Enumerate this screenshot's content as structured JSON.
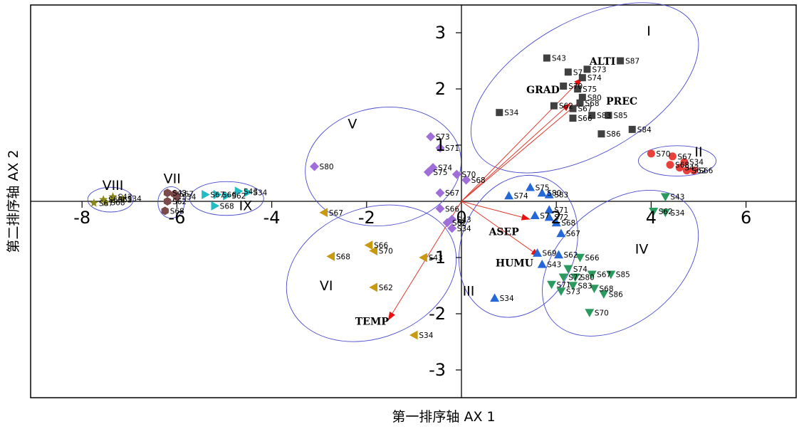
{
  "chart_data": {
    "type": "scatter",
    "xlabel": "第一排序轴  AX 1",
    "ylabel": "第二排序轴  AX 2",
    "xlim": [
      -8.0,
      7.0
    ],
    "ylim": [
      -3.5,
      3.5
    ],
    "x_ticks": [
      -8,
      -6,
      -4,
      -2,
      0,
      2,
      4,
      6
    ],
    "y_ticks": [
      -3,
      -2,
      -1,
      1,
      2,
      3
    ],
    "x_tick_labels": [
      "-8",
      "-6",
      "-4",
      "-2",
      "0",
      "2",
      "4",
      "6"
    ],
    "y_tick_labels": [
      "-3",
      "-2",
      "-1",
      "1",
      "2",
      "3"
    ],
    "grid": false,
    "legend": "none",
    "series": [
      {
        "group": "I",
        "marker": "square",
        "color": "#404040",
        "points": [
          {
            "label": "S43",
            "x": 1.8,
            "y": 2.55
          },
          {
            "label": "S87",
            "x": 3.35,
            "y": 2.5
          },
          {
            "label": "S73",
            "x": 2.65,
            "y": 2.35
          },
          {
            "label": "S7",
            "x": 2.25,
            "y": 2.3
          },
          {
            "label": "S74",
            "x": 2.55,
            "y": 2.2
          },
          {
            "label": "S70",
            "x": 2.15,
            "y": 2.05
          },
          {
            "label": "S75",
            "x": 2.45,
            "y": 2.0
          },
          {
            "label": "S80",
            "x": 2.55,
            "y": 1.85
          },
          {
            "label": "S68",
            "x": 2.5,
            "y": 1.75
          },
          {
            "label": "S62",
            "x": 1.95,
            "y": 1.7
          },
          {
            "label": "S67",
            "x": 2.35,
            "y": 1.65
          },
          {
            "label": "S34",
            "x": 0.8,
            "y": 1.58
          },
          {
            "label": "S66",
            "x": 2.35,
            "y": 1.48
          },
          {
            "label": "S83",
            "x": 2.75,
            "y": 1.53
          },
          {
            "label": "S85",
            "x": 3.1,
            "y": 1.53
          },
          {
            "label": "S84",
            "x": 3.6,
            "y": 1.28
          },
          {
            "label": "S86",
            "x": 2.95,
            "y": 1.2
          }
        ]
      },
      {
        "group": "II",
        "marker": "circle",
        "color": "#e8413c",
        "points": [
          {
            "label": "S70",
            "x": 4.0,
            "y": 0.85
          },
          {
            "label": "S67",
            "x": 4.45,
            "y": 0.8
          },
          {
            "label": "S34",
            "x": 4.7,
            "y": 0.7
          },
          {
            "label": "S68",
            "x": 4.4,
            "y": 0.65
          },
          {
            "label": "S43",
            "x": 4.6,
            "y": 0.6
          },
          {
            "label": "S62",
            "x": 4.75,
            "y": 0.55
          },
          {
            "label": "S66",
            "x": 4.9,
            "y": 0.55
          }
        ]
      },
      {
        "group": "III",
        "marker": "triangle-up",
        "color": "#2468d8",
        "points": [
          {
            "label": "S75",
            "x": 1.45,
            "y": 0.25
          },
          {
            "label": "S74",
            "x": 1.0,
            "y": 0.1
          },
          {
            "label": "S80",
            "x": 1.7,
            "y": 0.15
          },
          {
            "label": "S83",
            "x": 1.85,
            "y": 0.12
          },
          {
            "label": "S71",
            "x": 1.85,
            "y": -0.15
          },
          {
            "label": "S7",
            "x": 1.55,
            "y": -0.25
          },
          {
            "label": "S72",
            "x": 1.85,
            "y": -0.28
          },
          {
            "label": "S68",
            "x": 2.0,
            "y": -0.38
          },
          {
            "label": "S67",
            "x": 2.1,
            "y": -0.57
          },
          {
            "label": "S69",
            "x": 1.6,
            "y": -0.92
          },
          {
            "label": "S62",
            "x": 2.05,
            "y": -0.95
          },
          {
            "label": "S43",
            "x": 1.7,
            "y": -1.12
          },
          {
            "label": "S34",
            "x": 0.7,
            "y": -1.72
          }
        ]
      },
      {
        "group": "IV",
        "marker": "triangle-down",
        "color": "#2a9a5f",
        "points": [
          {
            "label": "S43",
            "x": 4.3,
            "y": 0.08
          },
          {
            "label": "S62",
            "x": 4.05,
            "y": -0.18
          },
          {
            "label": "S34",
            "x": 4.3,
            "y": -0.2
          },
          {
            "label": "S66",
            "x": 2.5,
            "y": -1.0
          },
          {
            "label": "S74",
            "x": 2.25,
            "y": -1.2
          },
          {
            "label": "S67",
            "x": 2.75,
            "y": -1.3
          },
          {
            "label": "S85",
            "x": 3.15,
            "y": -1.3
          },
          {
            "label": "S72",
            "x": 2.15,
            "y": -1.35
          },
          {
            "label": "S80",
            "x": 2.4,
            "y": -1.35
          },
          {
            "label": "S71",
            "x": 1.9,
            "y": -1.48
          },
          {
            "label": "S83",
            "x": 2.35,
            "y": -1.5
          },
          {
            "label": "S73",
            "x": 2.1,
            "y": -1.6
          },
          {
            "label": "S68",
            "x": 2.8,
            "y": -1.55
          },
          {
            "label": "S86",
            "x": 3.0,
            "y": -1.65
          },
          {
            "label": "S70",
            "x": 2.7,
            "y": -1.98
          }
        ]
      },
      {
        "group": "V",
        "marker": "diamond",
        "color": "#9f6ed8",
        "points": [
          {
            "label": "S73",
            "x": -0.65,
            "y": 1.15
          },
          {
            "label": "S71",
            "x": -0.45,
            "y": 0.95
          },
          {
            "label": "S80",
            "x": -3.1,
            "y": 0.62
          },
          {
            "label": "S74",
            "x": -0.6,
            "y": 0.6
          },
          {
            "label": "S75",
            "x": -0.7,
            "y": 0.52
          },
          {
            "label": "S70",
            "x": -0.1,
            "y": 0.48
          },
          {
            "label": "S68",
            "x": 0.1,
            "y": 0.38
          },
          {
            "label": "S67",
            "x": -0.45,
            "y": 0.15
          },
          {
            "label": "S66",
            "x": -0.45,
            "y": -0.13
          },
          {
            "label": "S43",
            "x": -0.2,
            "y": -0.32
          },
          {
            "label": "S62",
            "x": -0.3,
            "y": -0.38
          },
          {
            "label": "S34",
            "x": -0.2,
            "y": -0.48
          }
        ]
      },
      {
        "group": "VI",
        "marker": "triangle-left",
        "color": "#c89a12",
        "points": [
          {
            "label": "S67",
            "x": -2.9,
            "y": -0.2
          },
          {
            "label": "S66",
            "x": -1.95,
            "y": -0.78
          },
          {
            "label": "S70",
            "x": -1.85,
            "y": -0.88
          },
          {
            "label": "S68",
            "x": -2.75,
            "y": -0.98
          },
          {
            "label": "S43",
            "x": -0.8,
            "y": -1.0
          },
          {
            "label": "S62",
            "x": -1.85,
            "y": -1.53
          },
          {
            "label": "S34",
            "x": -1.0,
            "y": -2.38
          }
        ]
      },
      {
        "group": "VII",
        "marker": "hexagon",
        "color": "#7b4a4a",
        "points": [
          {
            "label": "S43",
            "x": -6.2,
            "y": 0.15
          },
          {
            "label": "S67",
            "x": -6.05,
            "y": 0.13
          },
          {
            "label": "S34",
            "x": -6.0,
            "y": 0.08
          },
          {
            "label": "S62",
            "x": -6.2,
            "y": 0.0
          },
          {
            "label": "S68",
            "x": -6.25,
            "y": -0.17
          }
        ]
      },
      {
        "group": "VIII",
        "marker": "star",
        "color": "#8a8a1a",
        "points": [
          {
            "label": "S43",
            "x": -7.35,
            "y": 0.08
          },
          {
            "label": "S34",
            "x": -7.15,
            "y": 0.05
          },
          {
            "label": "S62",
            "x": -7.35,
            "y": 0.03
          },
          {
            "label": "S66",
            "x": -7.55,
            "y": 0.03
          },
          {
            "label": "S68",
            "x": -7.5,
            "y": -0.02
          },
          {
            "label": "S67",
            "x": -7.75,
            "y": -0.03
          }
        ]
      },
      {
        "group": "IX",
        "marker": "triangle-right",
        "color": "#22bcc4",
        "points": [
          {
            "label": "S43",
            "x": -4.7,
            "y": 0.18
          },
          {
            "label": "S34",
            "x": -4.5,
            "y": 0.16
          },
          {
            "label": "S67",
            "x": -5.4,
            "y": 0.12
          },
          {
            "label": "S66",
            "x": -5.15,
            "y": 0.12
          },
          {
            "label": "S62",
            "x": -4.95,
            "y": 0.1
          },
          {
            "label": "S68",
            "x": -5.2,
            "y": -0.08
          }
        ]
      }
    ],
    "vectors": [
      {
        "label": "ALTI",
        "x": 2.55,
        "y": 2.2
      },
      {
        "label": "GRAD",
        "x": 2.3,
        "y": 1.75
      },
      {
        "label": "PREC",
        "x": 2.6,
        "y": 1.85
      },
      {
        "label": "ASEP",
        "x": 1.45,
        "y": -0.32
      },
      {
        "label": "HUMU",
        "x": 1.65,
        "y": -0.98
      },
      {
        "label": "TEMP",
        "x": -1.55,
        "y": -2.12
      }
    ],
    "group_labels": [
      {
        "label": "I",
        "x": 3.95,
        "y": 2.95
      },
      {
        "label": "II",
        "x": 5.0,
        "y": 0.8
      },
      {
        "label": "III",
        "x": 0.15,
        "y": -1.68
      },
      {
        "label": "IV",
        "x": 3.8,
        "y": -0.93
      },
      {
        "label": "V",
        "x": -2.3,
        "y": 1.3
      },
      {
        "label": "VI",
        "x": -2.85,
        "y": -1.58
      },
      {
        "label": "VII",
        "x": -6.1,
        "y": 0.32
      },
      {
        "label": "VIII",
        "x": -7.35,
        "y": 0.2
      },
      {
        "label": "IX",
        "x": -4.55,
        "y": -0.16
      }
    ],
    "ellipses": [
      {
        "group": "I",
        "cx": 2.6,
        "cy": 2.02,
        "rx": 2.65,
        "ry": 1.18,
        "rot": -30
      },
      {
        "group": "II",
        "cx": 4.55,
        "cy": 0.72,
        "rx": 0.82,
        "ry": 0.27,
        "rot": 0
      },
      {
        "group": "III",
        "cx": 1.2,
        "cy": -0.8,
        "rx": 1.2,
        "ry": 1.3,
        "rot": 22
      },
      {
        "group": "IV",
        "cx": 3.35,
        "cy": -1.1,
        "rx": 1.25,
        "ry": 1.58,
        "rot": 50
      },
      {
        "group": "V",
        "cx": -1.65,
        "cy": 0.62,
        "rx": 1.65,
        "ry": 1.05,
        "rot": -8
      },
      {
        "group": "VI",
        "cx": -1.9,
        "cy": -1.28,
        "rx": 1.85,
        "ry": 1.15,
        "rot": -22
      },
      {
        "group": "VII",
        "cx": -6.12,
        "cy": -0.02,
        "rx": 0.28,
        "ry": 0.28,
        "rot": 0
      },
      {
        "group": "VIII",
        "cx": -7.4,
        "cy": 0.03,
        "rx": 0.48,
        "ry": 0.22,
        "rot": 0
      },
      {
        "group": "IX",
        "cx": -4.95,
        "cy": 0.05,
        "rx": 0.78,
        "ry": 0.3,
        "rot": 0
      }
    ]
  }
}
